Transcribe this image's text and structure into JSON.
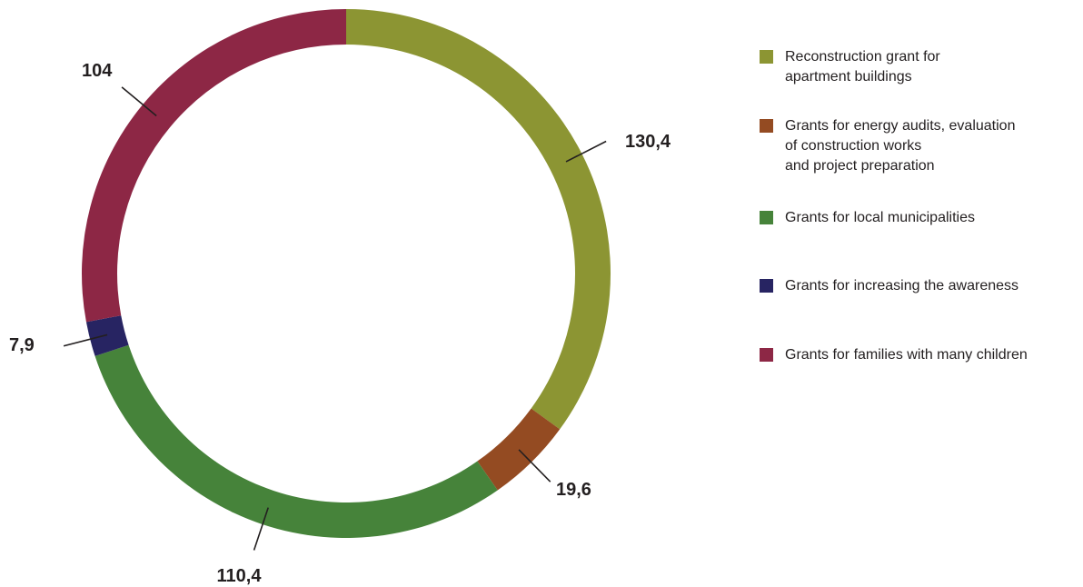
{
  "chart_data": {
    "type": "pie",
    "style": "donut",
    "labels": [
      "Reconstruction grant for\napartment buildings",
      "Grants for energy audits, evaluation\nof construction works\nand project preparation",
      "Grants for local municipalities",
      "Grants for increasing the awareness",
      "Grants for families with many children"
    ],
    "values": [
      130.4,
      19.6,
      110.4,
      7.9,
      104
    ],
    "value_labels": [
      "130,4",
      "19,6",
      "110,4",
      "7,9",
      "104"
    ],
    "colors": [
      "#8c9533",
      "#944b22",
      "#46833a",
      "#272462",
      "#8d2745"
    ],
    "legend": "right"
  }
}
